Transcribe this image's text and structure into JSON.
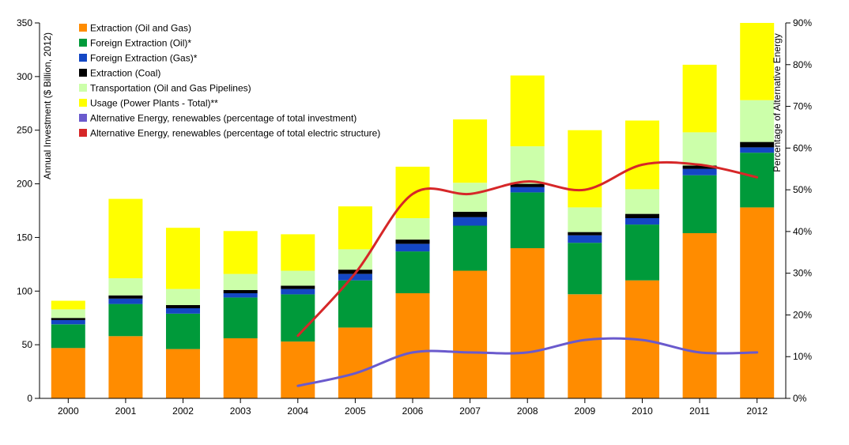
{
  "chart_data": {
    "type": "bar",
    "stacked": true,
    "categories": [
      "2000",
      "2001",
      "2002",
      "2003",
      "2004",
      "2005",
      "2006",
      "2007",
      "2008",
      "2009",
      "2010",
      "2011",
      "2012"
    ],
    "ylabel": "Annual Investment ($ Billion, 2012)",
    "y2label": "Percentage of Alternative Energy",
    "ylim": [
      0,
      350
    ],
    "y2lim": [
      0,
      90
    ],
    "yticks": [
      "0",
      "50",
      "100",
      "150",
      "200",
      "250",
      "300",
      "350"
    ],
    "y2ticks": [
      "0%",
      "10%",
      "20%",
      "30%",
      "40%",
      "50%",
      "60%",
      "70%",
      "80%",
      "90%"
    ],
    "legend_position": "top-left",
    "grid": false,
    "series": [
      {
        "name": "Extraction (Oil and Gas)",
        "color": "#ff8c00",
        "values": [
          47,
          58,
          46,
          56,
          53,
          66,
          98,
          119,
          140,
          97,
          110,
          154,
          178
        ]
      },
      {
        "name": "Foreign Extraction (Oil)*",
        "color": "#009a3a",
        "values": [
          22,
          30,
          33,
          38,
          44,
          44,
          39,
          42,
          52,
          48,
          52,
          54,
          51
        ]
      },
      {
        "name": "Foreign Extraction (Gas)*",
        "color": "#1447c4",
        "values": [
          4,
          5,
          5,
          4,
          5,
          6,
          7,
          8,
          5,
          7,
          6,
          6,
          5
        ]
      },
      {
        "name": "Extraction (Coal)",
        "color": "#000000",
        "values": [
          2,
          3,
          3,
          3,
          3,
          4,
          4,
          5,
          3,
          3,
          4,
          3,
          5
        ]
      },
      {
        "name": "Transportation (Oil and Gas Pipelines)",
        "color": "#ccffaa",
        "values": [
          8,
          16,
          15,
          15,
          14,
          19,
          20,
          27,
          35,
          23,
          23,
          31,
          39
        ]
      },
      {
        "name": "Usage (Power Plants - Total)**",
        "color": "#ffff00",
        "values": [
          8,
          74,
          57,
          40,
          34,
          40,
          48,
          59,
          66,
          72,
          64,
          63,
          72
        ]
      }
    ],
    "lines": [
      {
        "name": "Alternative Energy, renewables (percentage of total investment)",
        "color": "#6a5acd",
        "axis": "right",
        "x": [
          "2004",
          "2005",
          "2006",
          "2007",
          "2008",
          "2009",
          "2010",
          "2011",
          "2012"
        ],
        "values": [
          3,
          6,
          11,
          11,
          11,
          14,
          14,
          11,
          11
        ]
      },
      {
        "name": "Alternative Energy, renewables (percentage of total electric structure)",
        "color": "#d62728",
        "axis": "right",
        "x": [
          "2004",
          "2005",
          "2006",
          "2007",
          "2008",
          "2009",
          "2010",
          "2011",
          "2012"
        ],
        "values": [
          15,
          30,
          49,
          49,
          52,
          50,
          56,
          56,
          53
        ]
      }
    ]
  }
}
